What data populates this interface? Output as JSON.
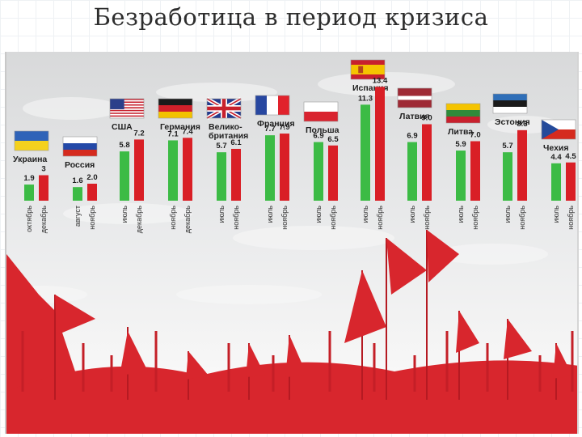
{
  "page": {
    "title": "Безработица в период кризиса"
  },
  "chart_data": {
    "type": "bar",
    "title": "",
    "xlabel": "",
    "ylabel": "",
    "ylim": [
      0,
      14
    ],
    "grid": false,
    "legend": "none",
    "colors": {
      "before": "#3cbb45",
      "after": "#d91f26"
    },
    "groups": [
      {
        "country": "Украина",
        "flag": "ukraine-flag",
        "bars": [
          {
            "month": "октябрь",
            "value": 1.9,
            "label": "1.9"
          },
          {
            "month": "декабрь",
            "value": 3.0,
            "label": "3"
          }
        ]
      },
      {
        "country": "Россия",
        "flag": "russia-flag",
        "bars": [
          {
            "month": "август",
            "value": 1.6,
            "label": "1.6"
          },
          {
            "month": "ноябрь",
            "value": 2.0,
            "label": "2.0"
          }
        ]
      },
      {
        "country": "США",
        "flag": "usa-flag",
        "bars": [
          {
            "month": "июль",
            "value": 5.8,
            "label": "5.8"
          },
          {
            "month": "декабрь",
            "value": 7.2,
            "label": "7.2"
          }
        ]
      },
      {
        "country": "Германия",
        "flag": "germany-flag",
        "bars": [
          {
            "month": "ноябрь",
            "value": 7.1,
            "label": "7.1"
          },
          {
            "month": "декабрь",
            "value": 7.4,
            "label": "7.4"
          }
        ]
      },
      {
        "country": "Велико- британия",
        "flag": "uk-flag",
        "bars": [
          {
            "month": "июль",
            "value": 5.7,
            "label": "5.7"
          },
          {
            "month": "ноябрь",
            "value": 6.1,
            "label": "6.1"
          }
        ]
      },
      {
        "country": "Франция",
        "flag": "france-flag",
        "bars": [
          {
            "month": "июль",
            "value": 7.7,
            "label": "7.7"
          },
          {
            "month": "ноябрь",
            "value": 7.9,
            "label": "7.9"
          }
        ]
      },
      {
        "country": "Польша",
        "flag": "poland-flag",
        "bars": [
          {
            "month": "июль",
            "value": 6.9,
            "label": "6.9"
          },
          {
            "month": "ноябрь",
            "value": 6.5,
            "label": "6.5"
          }
        ]
      },
      {
        "country": "Испания",
        "flag": "spain-flag",
        "bars": [
          {
            "month": "июль",
            "value": 11.3,
            "label": "11.3"
          },
          {
            "month": "ноябрь",
            "value": 13.4,
            "label": "13.4"
          }
        ]
      },
      {
        "country": "Латвия",
        "flag": "latvia-flag",
        "bars": [
          {
            "month": "июль",
            "value": 6.9,
            "label": "6.9"
          },
          {
            "month": "ноябрь",
            "value": 9.0,
            "label": "9.0"
          }
        ]
      },
      {
        "country": "Литва",
        "flag": "lithuania-flag",
        "bars": [
          {
            "month": "июль",
            "value": 5.9,
            "label": "5.9"
          },
          {
            "month": "ноябрь",
            "value": 7.0,
            "label": "7.0"
          }
        ]
      },
      {
        "country": "Эстония",
        "flag": "estonia-flag",
        "bars": [
          {
            "month": "июль",
            "value": 5.7,
            "label": "5.7"
          },
          {
            "month": "ноябрь",
            "value": 8.3,
            "label": "8.3"
          }
        ]
      },
      {
        "country": "Чехия",
        "flag": "czech-flag",
        "bars": [
          {
            "month": "июль",
            "value": 4.4,
            "label": "4.4"
          },
          {
            "month": "ноябрь",
            "value": 4.5,
            "label": "4.5"
          }
        ]
      }
    ]
  }
}
